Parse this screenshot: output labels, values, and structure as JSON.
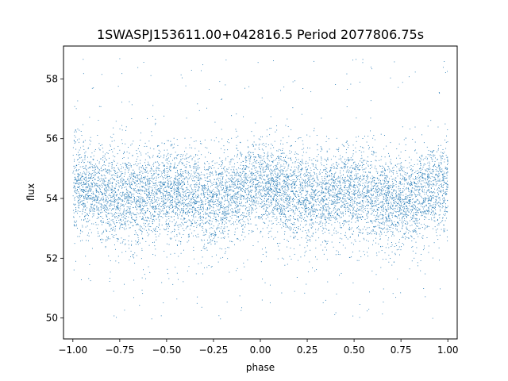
{
  "chart_data": {
    "type": "scatter",
    "title": "1SWASPJ153611.00+042816.5 Period 2077806.75s",
    "xlabel": "phase",
    "ylabel": "flux",
    "xlim": [
      -1.05,
      1.05
    ],
    "ylim": [
      49.3,
      59.1
    ],
    "xticks": [
      -1.0,
      -0.75,
      -0.5,
      -0.25,
      0.0,
      0.25,
      0.5,
      0.75,
      1.0
    ],
    "xtick_labels": [
      "−1.00",
      "−0.75",
      "−0.50",
      "−0.25",
      "0.00",
      "0.25",
      "0.50",
      "0.75",
      "1.00"
    ],
    "yticks": [
      50,
      52,
      54,
      56,
      58
    ],
    "ytick_labels": [
      "50",
      "52",
      "54",
      "56",
      "58"
    ],
    "grid": false,
    "legend": "none",
    "color": "#1f77b4",
    "series": [
      {
        "x_range": [
          -1.0,
          1.0
        ],
        "y_center": 54.2,
        "y_spread": 0.75,
        "y_min": 49.7,
        "y_max": 58.7,
        "point_count": 9000,
        "description_points": [
          {
            "x": -1.0,
            "y": 54.5
          },
          {
            "x": -0.75,
            "y": 54.0
          },
          {
            "x": -0.5,
            "y": 54.2
          },
          {
            "x": -0.25,
            "y": 53.9
          },
          {
            "x": 0.0,
            "y": 54.5
          },
          {
            "x": 0.25,
            "y": 54.0
          },
          {
            "x": 0.5,
            "y": 54.2
          },
          {
            "x": 0.75,
            "y": 53.9
          },
          {
            "x": 1.0,
            "y": 54.5
          }
        ]
      }
    ]
  }
}
